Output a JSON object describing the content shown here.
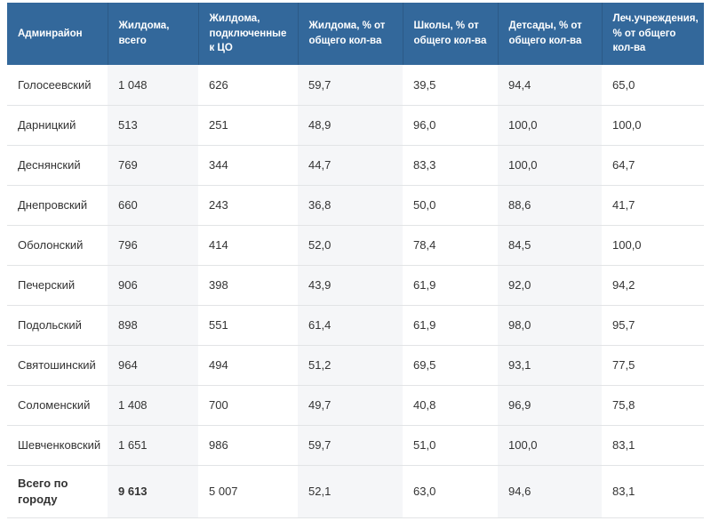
{
  "colors": {
    "header_background": "#33689B",
    "header_text": "#FFFFFF",
    "stripe_column_background": "#F5F6F8",
    "row_border": "#E2E4E6",
    "body_text": "#333333",
    "page_background": "#FFFFFF"
  },
  "chart_data": {
    "type": "table",
    "columns": [
      "Админрайон",
      "Жилдома, всего",
      "Жилдома, подключенные к ЦО",
      "Жилдома, % от общего кол-ва",
      "Школы, % от общего кол-ва",
      "Детсады, % от общего кол-ва",
      "Леч.учреждения, % от общего кол-ва"
    ],
    "rows": [
      [
        "Голосеевский",
        "1 048",
        "626",
        "59,7",
        "39,5",
        "94,4",
        "65,0"
      ],
      [
        "Дарницкий",
        "513",
        "251",
        "48,9",
        "96,0",
        "100,0",
        "100,0"
      ],
      [
        "Деснянский",
        "769",
        "344",
        "44,7",
        "83,3",
        "100,0",
        "64,7"
      ],
      [
        "Днепровский",
        "660",
        "243",
        "36,8",
        "50,0",
        "88,6",
        "41,7"
      ],
      [
        "Оболонский",
        "796",
        "414",
        "52,0",
        "78,4",
        "84,5",
        "100,0"
      ],
      [
        "Печерский",
        "906",
        "398",
        "43,9",
        "61,9",
        "92,0",
        "94,2"
      ],
      [
        "Подольский",
        "898",
        "551",
        "61,4",
        "61,9",
        "98,0",
        "95,7"
      ],
      [
        "Святошинский",
        "964",
        "494",
        "51,2",
        "69,5",
        "93,1",
        "77,5"
      ],
      [
        "Соломенский",
        "1 408",
        "700",
        "49,7",
        "40,8",
        "96,9",
        "75,8"
      ],
      [
        "Шевченковский",
        "1 651",
        "986",
        "59,7",
        "51,0",
        "100,0",
        "83,1"
      ]
    ],
    "total_row": [
      "Всего по городу",
      "9 613",
      "5 007",
      "52,1",
      "63,0",
      "94,6",
      "83,1"
    ],
    "total_row_bold_cells": [
      0,
      1
    ],
    "striped_column_indexes": [
      1,
      3,
      5
    ],
    "grid": "horizontal-only",
    "legend_position": "none"
  }
}
